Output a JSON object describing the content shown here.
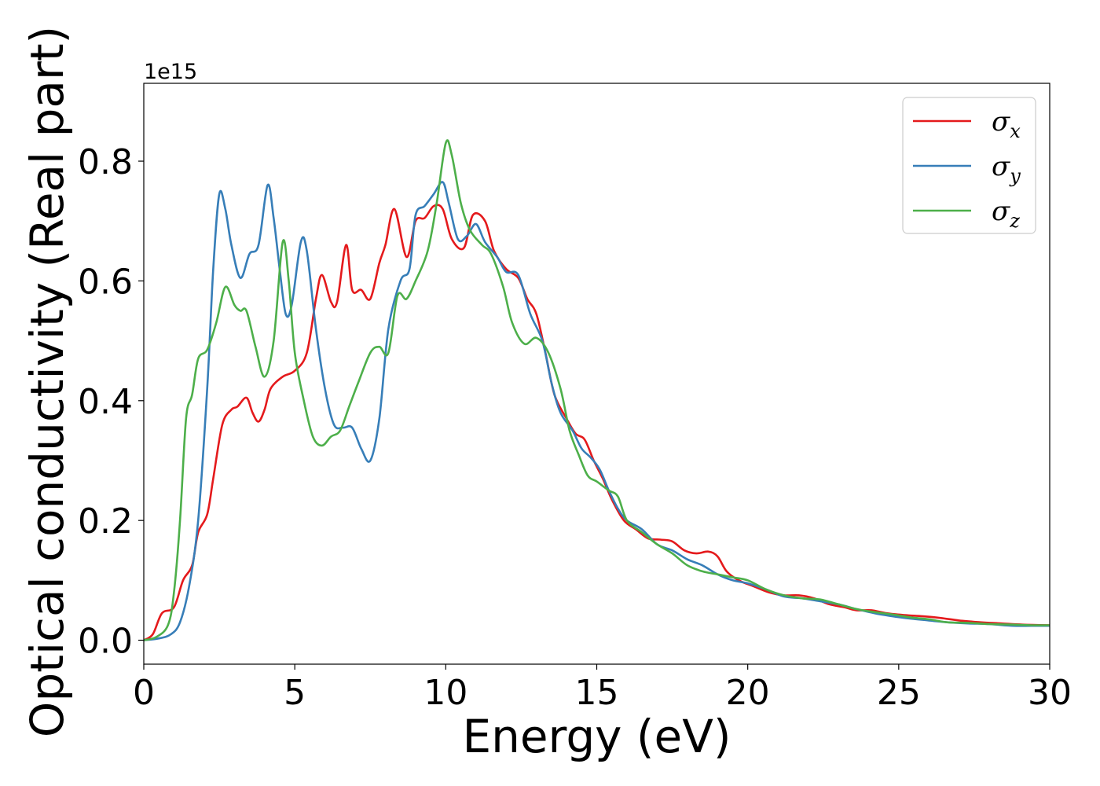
{
  "chart_data": {
    "type": "line",
    "xlabel": "Energy (eV)",
    "ylabel": "Optical conductivity (Real part)",
    "y_offset_label": "1e15",
    "xlim": [
      0,
      30
    ],
    "ylim": [
      -0.04,
      0.93
    ],
    "x_ticks": [
      0,
      5,
      10,
      15,
      20,
      25,
      30
    ],
    "x_tick_labels": [
      "0",
      "5",
      "10",
      "15",
      "20",
      "25",
      "30"
    ],
    "y_ticks": [
      0.0,
      0.2,
      0.4,
      0.6,
      0.8
    ],
    "y_tick_labels": [
      "0.0",
      "0.2",
      "0.4",
      "0.6",
      "0.8"
    ],
    "grid": false,
    "legend_position": "top-right",
    "series": [
      {
        "name": "σx",
        "symbol": "σ",
        "subscript": "x",
        "color": "#e41a1c",
        "points": [
          [
            0,
            0
          ],
          [
            0.3,
            0.01
          ],
          [
            0.6,
            0.045
          ],
          [
            1.0,
            0.055
          ],
          [
            1.3,
            0.1
          ],
          [
            1.6,
            0.125
          ],
          [
            1.8,
            0.18
          ],
          [
            2.1,
            0.21
          ],
          [
            2.3,
            0.27
          ],
          [
            2.6,
            0.36
          ],
          [
            2.9,
            0.385
          ],
          [
            3.1,
            0.39
          ],
          [
            3.4,
            0.405
          ],
          [
            3.6,
            0.38
          ],
          [
            3.8,
            0.365
          ],
          [
            4.0,
            0.385
          ],
          [
            4.2,
            0.42
          ],
          [
            4.6,
            0.44
          ],
          [
            5.0,
            0.45
          ],
          [
            5.4,
            0.48
          ],
          [
            5.7,
            0.57
          ],
          [
            5.9,
            0.61
          ],
          [
            6.2,
            0.565
          ],
          [
            6.4,
            0.565
          ],
          [
            6.7,
            0.66
          ],
          [
            6.9,
            0.585
          ],
          [
            7.2,
            0.585
          ],
          [
            7.5,
            0.57
          ],
          [
            7.8,
            0.63
          ],
          [
            8.0,
            0.66
          ],
          [
            8.3,
            0.72
          ],
          [
            8.7,
            0.64
          ],
          [
            9.0,
            0.7
          ],
          [
            9.3,
            0.705
          ],
          [
            9.6,
            0.725
          ],
          [
            9.9,
            0.72
          ],
          [
            10.2,
            0.67
          ],
          [
            10.6,
            0.655
          ],
          [
            10.9,
            0.71
          ],
          [
            11.3,
            0.7
          ],
          [
            11.6,
            0.65
          ],
          [
            12.0,
            0.62
          ],
          [
            12.4,
            0.605
          ],
          [
            12.7,
            0.57
          ],
          [
            13.0,
            0.545
          ],
          [
            13.3,
            0.48
          ],
          [
            13.6,
            0.41
          ],
          [
            14.0,
            0.37
          ],
          [
            14.3,
            0.345
          ],
          [
            14.6,
            0.335
          ],
          [
            14.9,
            0.3
          ],
          [
            15.2,
            0.27
          ],
          [
            15.5,
            0.235
          ],
          [
            15.9,
            0.2
          ],
          [
            16.3,
            0.185
          ],
          [
            16.7,
            0.17
          ],
          [
            17.1,
            0.168
          ],
          [
            17.5,
            0.165
          ],
          [
            17.9,
            0.15
          ],
          [
            18.3,
            0.145
          ],
          [
            18.7,
            0.148
          ],
          [
            19.0,
            0.14
          ],
          [
            19.3,
            0.115
          ],
          [
            19.7,
            0.1
          ],
          [
            20.2,
            0.09
          ],
          [
            20.7,
            0.08
          ],
          [
            21.2,
            0.075
          ],
          [
            21.7,
            0.075
          ],
          [
            22.2,
            0.07
          ],
          [
            22.7,
            0.06
          ],
          [
            23.2,
            0.055
          ],
          [
            23.6,
            0.05
          ],
          [
            24.1,
            0.05
          ],
          [
            24.6,
            0.045
          ],
          [
            25.2,
            0.042
          ],
          [
            25.8,
            0.04
          ],
          [
            26.4,
            0.037
          ],
          [
            27.0,
            0.033
          ],
          [
            27.7,
            0.03
          ],
          [
            28.4,
            0.028
          ],
          [
            29.1,
            0.026
          ],
          [
            30.0,
            0.025
          ]
        ]
      },
      {
        "name": "σy",
        "symbol": "σ",
        "subscript": "y",
        "color": "#377eb8",
        "points": [
          [
            0,
            0
          ],
          [
            0.5,
            0.003
          ],
          [
            0.9,
            0.01
          ],
          [
            1.2,
            0.03
          ],
          [
            1.5,
            0.09
          ],
          [
            1.8,
            0.2
          ],
          [
            2.1,
            0.42
          ],
          [
            2.3,
            0.62
          ],
          [
            2.5,
            0.745
          ],
          [
            2.7,
            0.72
          ],
          [
            2.9,
            0.66
          ],
          [
            3.2,
            0.605
          ],
          [
            3.5,
            0.645
          ],
          [
            3.8,
            0.66
          ],
          [
            4.1,
            0.76
          ],
          [
            4.3,
            0.705
          ],
          [
            4.5,
            0.62
          ],
          [
            4.7,
            0.545
          ],
          [
            4.9,
            0.56
          ],
          [
            5.2,
            0.665
          ],
          [
            5.4,
            0.65
          ],
          [
            5.7,
            0.52
          ],
          [
            6.0,
            0.42
          ],
          [
            6.3,
            0.36
          ],
          [
            6.6,
            0.355
          ],
          [
            6.9,
            0.355
          ],
          [
            7.2,
            0.32
          ],
          [
            7.5,
            0.3
          ],
          [
            7.8,
            0.37
          ],
          [
            8.1,
            0.52
          ],
          [
            8.5,
            0.6
          ],
          [
            8.8,
            0.62
          ],
          [
            9.0,
            0.71
          ],
          [
            9.3,
            0.725
          ],
          [
            9.6,
            0.745
          ],
          [
            9.9,
            0.765
          ],
          [
            10.1,
            0.73
          ],
          [
            10.4,
            0.67
          ],
          [
            10.7,
            0.675
          ],
          [
            11.0,
            0.695
          ],
          [
            11.3,
            0.665
          ],
          [
            11.7,
            0.64
          ],
          [
            12.0,
            0.615
          ],
          [
            12.4,
            0.61
          ],
          [
            12.8,
            0.545
          ],
          [
            13.2,
            0.5
          ],
          [
            13.5,
            0.43
          ],
          [
            13.8,
            0.38
          ],
          [
            14.2,
            0.35
          ],
          [
            14.5,
            0.32
          ],
          [
            14.8,
            0.305
          ],
          [
            15.1,
            0.285
          ],
          [
            15.4,
            0.25
          ],
          [
            15.7,
            0.22
          ],
          [
            16.0,
            0.2
          ],
          [
            16.5,
            0.185
          ],
          [
            17.0,
            0.16
          ],
          [
            17.5,
            0.15
          ],
          [
            18.0,
            0.135
          ],
          [
            18.5,
            0.125
          ],
          [
            19.0,
            0.11
          ],
          [
            19.5,
            0.1
          ],
          [
            20.0,
            0.095
          ],
          [
            20.6,
            0.085
          ],
          [
            21.2,
            0.073
          ],
          [
            21.8,
            0.07
          ],
          [
            22.4,
            0.065
          ],
          [
            23.0,
            0.06
          ],
          [
            23.6,
            0.052
          ],
          [
            24.2,
            0.045
          ],
          [
            24.8,
            0.04
          ],
          [
            25.4,
            0.036
          ],
          [
            26.0,
            0.033
          ],
          [
            26.6,
            0.03
          ],
          [
            27.3,
            0.028
          ],
          [
            28.0,
            0.027
          ],
          [
            28.8,
            0.024
          ],
          [
            29.4,
            0.024
          ],
          [
            30.0,
            0.024
          ]
        ]
      },
      {
        "name": "σz",
        "symbol": "σ",
        "subscript": "z",
        "color": "#4daf4a",
        "points": [
          [
            0,
            0
          ],
          [
            0.4,
            0.005
          ],
          [
            0.8,
            0.025
          ],
          [
            1.0,
            0.08
          ],
          [
            1.2,
            0.2
          ],
          [
            1.4,
            0.37
          ],
          [
            1.6,
            0.41
          ],
          [
            1.8,
            0.47
          ],
          [
            2.1,
            0.485
          ],
          [
            2.4,
            0.53
          ],
          [
            2.7,
            0.59
          ],
          [
            3.0,
            0.56
          ],
          [
            3.2,
            0.55
          ],
          [
            3.4,
            0.55
          ],
          [
            3.7,
            0.49
          ],
          [
            4.0,
            0.44
          ],
          [
            4.3,
            0.5
          ],
          [
            4.6,
            0.665
          ],
          [
            4.8,
            0.6
          ],
          [
            5.0,
            0.48
          ],
          [
            5.3,
            0.4
          ],
          [
            5.6,
            0.34
          ],
          [
            5.9,
            0.325
          ],
          [
            6.2,
            0.34
          ],
          [
            6.5,
            0.35
          ],
          [
            6.8,
            0.39
          ],
          [
            7.1,
            0.43
          ],
          [
            7.5,
            0.48
          ],
          [
            7.8,
            0.49
          ],
          [
            8.1,
            0.48
          ],
          [
            8.4,
            0.575
          ],
          [
            8.7,
            0.57
          ],
          [
            9.0,
            0.6
          ],
          [
            9.4,
            0.65
          ],
          [
            9.7,
            0.73
          ],
          [
            10.0,
            0.83
          ],
          [
            10.2,
            0.81
          ],
          [
            10.5,
            0.73
          ],
          [
            10.8,
            0.685
          ],
          [
            11.2,
            0.66
          ],
          [
            11.5,
            0.645
          ],
          [
            11.9,
            0.59
          ],
          [
            12.2,
            0.53
          ],
          [
            12.6,
            0.495
          ],
          [
            13.0,
            0.505
          ],
          [
            13.4,
            0.48
          ],
          [
            13.8,
            0.42
          ],
          [
            14.1,
            0.35
          ],
          [
            14.4,
            0.31
          ],
          [
            14.7,
            0.275
          ],
          [
            15.0,
            0.265
          ],
          [
            15.4,
            0.25
          ],
          [
            15.7,
            0.24
          ],
          [
            16.0,
            0.2
          ],
          [
            16.5,
            0.18
          ],
          [
            17.0,
            0.16
          ],
          [
            17.5,
            0.145
          ],
          [
            18.0,
            0.125
          ],
          [
            18.5,
            0.115
          ],
          [
            19.0,
            0.11
          ],
          [
            19.5,
            0.105
          ],
          [
            20.0,
            0.1
          ],
          [
            20.6,
            0.085
          ],
          [
            21.2,
            0.075
          ],
          [
            21.8,
            0.07
          ],
          [
            22.4,
            0.068
          ],
          [
            23.0,
            0.06
          ],
          [
            23.6,
            0.052
          ],
          [
            24.2,
            0.047
          ],
          [
            24.8,
            0.043
          ],
          [
            25.4,
            0.038
          ],
          [
            26.0,
            0.035
          ],
          [
            26.6,
            0.03
          ],
          [
            27.3,
            0.029
          ],
          [
            28.0,
            0.027
          ],
          [
            28.8,
            0.026
          ],
          [
            29.4,
            0.025
          ],
          [
            30.0,
            0.025
          ]
        ]
      }
    ]
  }
}
